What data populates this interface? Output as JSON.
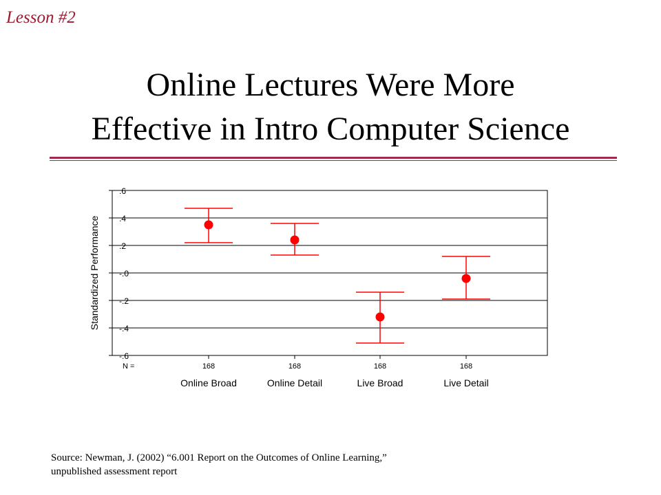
{
  "slide": {
    "lesson_label": "Lesson #2",
    "title_lines": [
      "Online Lectures Were More",
      "Effective in Intro Computer Science"
    ],
    "source_lines": [
      "Source:  Newman, J. (2002)  “6.001 Report on the Outcomes of Online Learning,”",
      "unpublished assessment report"
    ]
  },
  "colors": {
    "lesson": "#9b1b30",
    "rule": "#a12a4a",
    "marker": "#ff0000",
    "gridline": "#000000"
  },
  "chart_data": {
    "type": "scatter",
    "ylabel": "Standardized Performance",
    "ylim": [
      -0.6,
      0.6
    ],
    "yticks": [
      0.6,
      0.4,
      0.2,
      0.0,
      -0.2,
      -0.4,
      -0.6
    ],
    "ytick_labels": [
      ".6",
      ".4",
      ".2",
      "-.0",
      "-.2",
      "-.4",
      "-.6"
    ],
    "n_label": "N =",
    "grid": true,
    "categories": [
      "Online Broad",
      "Online Detail",
      "Live Broad",
      "Live Detail"
    ],
    "n_values": [
      "168",
      "168",
      "168",
      "168"
    ],
    "means": [
      0.35,
      0.24,
      -0.32,
      -0.04
    ],
    "upper": [
      0.47,
      0.36,
      -0.14,
      0.12
    ],
    "lower": [
      0.22,
      0.13,
      -0.51,
      -0.19
    ]
  }
}
